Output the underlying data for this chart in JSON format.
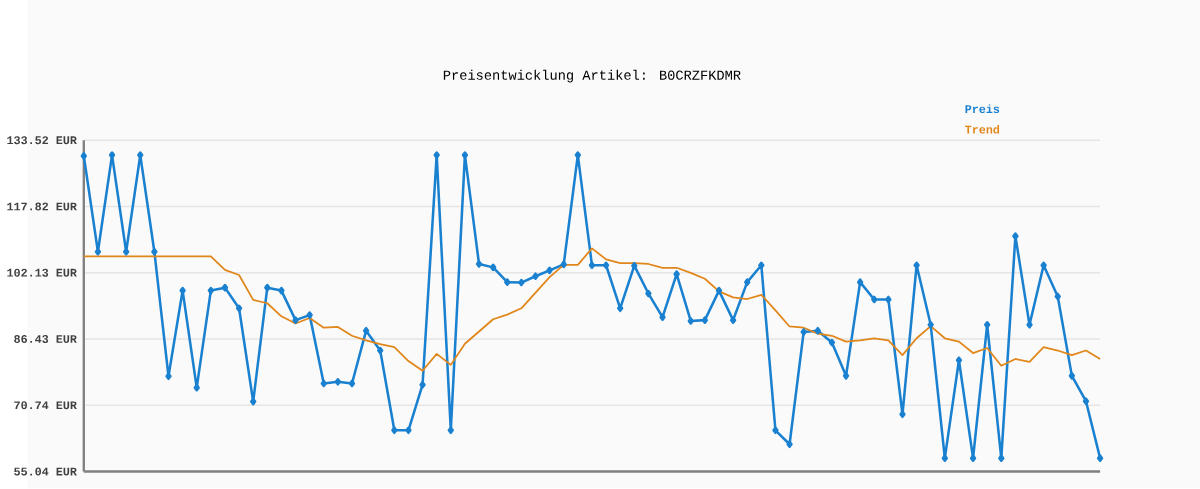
{
  "chart_data": {
    "type": "line",
    "title": "Preisentwicklung Artikel: B0CRZFKDMR",
    "categories": [
      null,
      null,
      null,
      null,
      null,
      null,
      null,
      null,
      null,
      null,
      null,
      null,
      null,
      null,
      null,
      null,
      null,
      null,
      null,
      null,
      null,
      null,
      null,
      null,
      null,
      null,
      null,
      null,
      null,
      null,
      null,
      null,
      null,
      null,
      null,
      null,
      null,
      null,
      null,
      null,
      null,
      null,
      null,
      null,
      null,
      null,
      null,
      null,
      null,
      null,
      null,
      null,
      null,
      null,
      null,
      null,
      null,
      null,
      null,
      null,
      null,
      null,
      null,
      null,
      null,
      null,
      null,
      null,
      null,
      null,
      null,
      null,
      null
    ],
    "series": [
      {
        "name": "Preis",
        "color": "#1a80d0",
        "marker": "diamond",
        "values": [
          129.8,
          107.1,
          130.0,
          107.1,
          130.0,
          107.1,
          77.6,
          97.9,
          74.9,
          97.9,
          98.6,
          93.7,
          71.6,
          98.6,
          97.9,
          90.9,
          92.1,
          75.9,
          76.3,
          75.9,
          88.4,
          83.7,
          64.8,
          64.8,
          75.6,
          130.0,
          64.8,
          130.0,
          104.2,
          103.4,
          99.9,
          99.8,
          101.3,
          102.7,
          104.1,
          130.0,
          103.9,
          103.9,
          93.7,
          103.8,
          97.2,
          91.6,
          101.8,
          90.7,
          90.9,
          97.9,
          90.9,
          99.9,
          103.9,
          64.8,
          61.5,
          88.1,
          88.4,
          85.6,
          77.7,
          99.9,
          95.8,
          95.8,
          68.6,
          103.9,
          89.8,
          58.2,
          81.4,
          58.2,
          89.8,
          58.2,
          110.8,
          89.8,
          103.9,
          96.5,
          77.7,
          71.7,
          58.2
        ]
      },
      {
        "name": "Trend",
        "color": "#e0861a",
        "marker": "none",
        "values": [
          106.0,
          106.0,
          106.0,
          106.0,
          106.0,
          106.0,
          106.0,
          106.0,
          106.0,
          106.0,
          102.8,
          101.6,
          95.7,
          94.9,
          91.8,
          90.1,
          91.4,
          89.1,
          89.3,
          87.2,
          86.1,
          85.2,
          84.5,
          81.2,
          78.9,
          82.9,
          80.3,
          85.3,
          88.2,
          91.1,
          92.2,
          93.7,
          97.4,
          101.1,
          104.0,
          104.0,
          107.9,
          105.3,
          104.4,
          104.4,
          104.2,
          103.3,
          103.3,
          102.1,
          100.7,
          97.7,
          96.3,
          95.9,
          96.9,
          93.2,
          89.4,
          89.1,
          87.7,
          87.2,
          85.8,
          86.1,
          86.6,
          86.1,
          82.6,
          86.6,
          89.5,
          86.6,
          85.8,
          83.1,
          84.3,
          80.1,
          81.7,
          81.0,
          84.5,
          83.7,
          82.6,
          83.7,
          81.7
        ]
      }
    ],
    "ylim": [
      55.04,
      133.52
    ],
    "yticks": [
      {
        "value": 55.04,
        "label": "55.04 EUR"
      },
      {
        "value": 70.74,
        "label": "70.74 EUR"
      },
      {
        "value": 86.43,
        "label": "86.43 EUR"
      },
      {
        "value": 102.13,
        "label": "102.13 EUR"
      },
      {
        "value": 117.82,
        "label": "117.82 EUR"
      },
      {
        "value": 133.52,
        "label": "133.52 EUR"
      }
    ],
    "grid": "y",
    "legend": "top right",
    "line_style": "solid"
  }
}
